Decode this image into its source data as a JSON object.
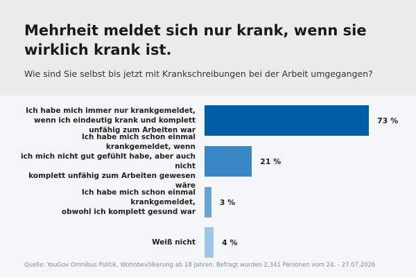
{
  "chart_data": {
    "type": "bar",
    "orientation": "horizontal",
    "title": "Mehrheit meldet sich nur krank, wenn sie wirklich krank ist.",
    "subtitle": "Wie sind Sie selbst bis jetzt mit Krankschreibungen bei der Arbeit umgegangen?",
    "categories": [
      "Ich habe mich immer nur krankgemeldet,\nwenn ich eindeutig krank und komplett\nunfähig zum Arbeiten war",
      "Ich habe mich schon einmal krankgemeldet, wenn\nich mich nicht gut gefühlt habe, aber auch nicht\nkomplett unfähig zum Arbeiten gewesen wäre",
      "Ich habe mich schon einmal krankgemeldet,\nobwohl ich komplett gesund war",
      "Weiß nicht"
    ],
    "values": [
      73,
      21,
      3,
      4
    ],
    "value_labels": [
      "73 %",
      "21 %",
      "3 %",
      "4 %"
    ],
    "colors": [
      "#005ea8",
      "#3a87c8",
      "#6aa3d6",
      "#9fc6e8"
    ],
    "source": "Quelle: YouGov Omnibus Politik, Wohnbevölkerung ab 18 Jahren. Befragt wurden 2.341 Personen vom 24. - 27.07.2026"
  }
}
